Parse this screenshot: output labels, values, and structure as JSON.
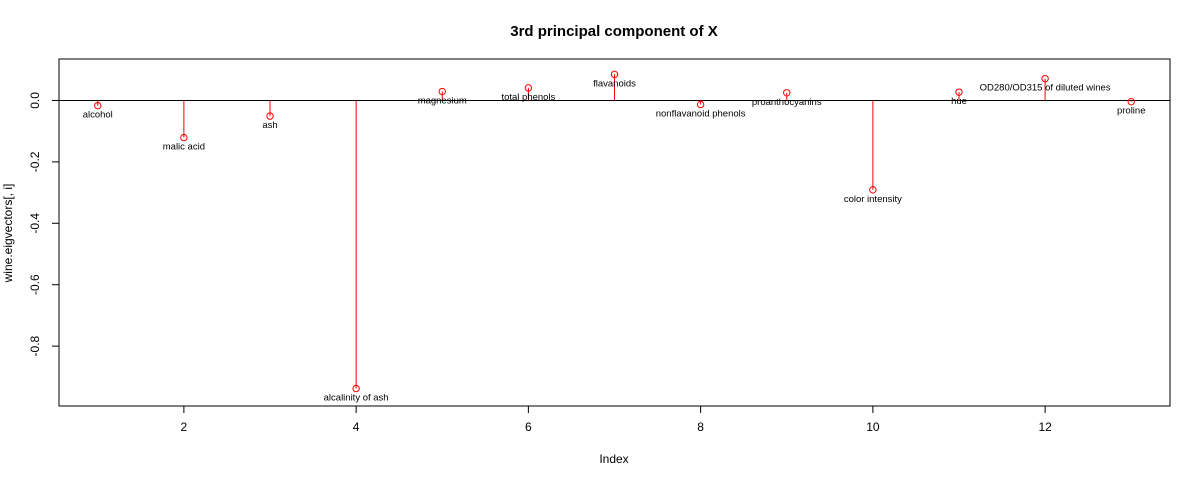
{
  "chart_data": {
    "type": "scatter",
    "title": "3rd principal component of X",
    "xlabel": "Index",
    "ylabel": "wine.eigvectors[, i]",
    "xlim": [
      0.55,
      13.45
    ],
    "ylim": [
      -0.995,
      0.135
    ],
    "x_ticks": [
      "2",
      "4",
      "6",
      "8",
      "10",
      "12"
    ],
    "y_ticks": [
      "0.0",
      "-0.2",
      "-0.4",
      "-0.6",
      "-0.8"
    ],
    "reference_line_y": 0,
    "grid": false,
    "legend": "none",
    "point_color": "#ff0000",
    "stem_color": "#ff0000",
    "points": [
      {
        "x": 1,
        "y": -0.017,
        "label": "alcohol"
      },
      {
        "x": 2,
        "y": -0.121,
        "label": "malic acid"
      },
      {
        "x": 3,
        "y": -0.051,
        "label": "ash"
      },
      {
        "x": 4,
        "y": -0.938,
        "label": "alcalinity of ash"
      },
      {
        "x": 5,
        "y": 0.029,
        "label": "magnesium"
      },
      {
        "x": 6,
        "y": 0.041,
        "label": "total phenols"
      },
      {
        "x": 7,
        "y": 0.085,
        "label": "flavanoids"
      },
      {
        "x": 8,
        "y": -0.013,
        "label": "nonflavanoid phenols"
      },
      {
        "x": 9,
        "y": 0.025,
        "label": "proanthocyanins"
      },
      {
        "x": 10,
        "y": -0.291,
        "label": "color intensity"
      },
      {
        "x": 11,
        "y": 0.027,
        "label": "hue"
      },
      {
        "x": 12,
        "y": 0.071,
        "label": "OD280/OD315 of diluted wines"
      },
      {
        "x": 13,
        "y": -0.004,
        "label": "proline"
      }
    ]
  }
}
